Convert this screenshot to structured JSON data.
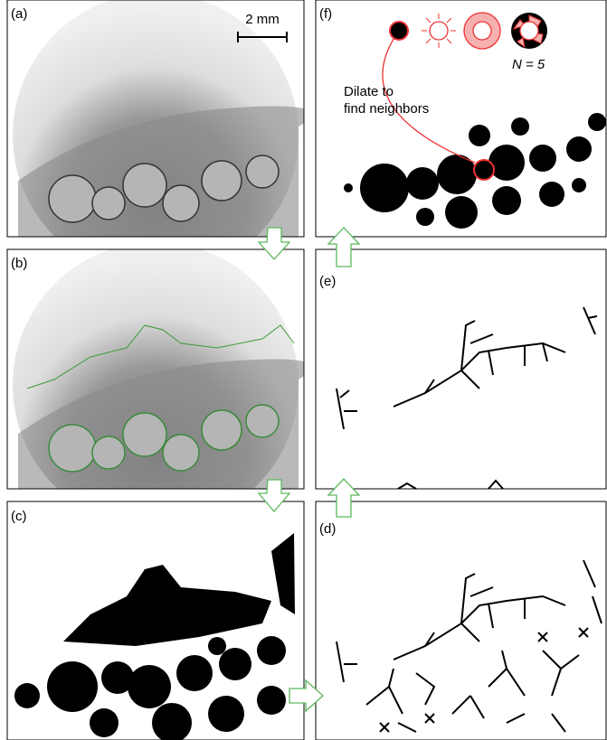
{
  "panels": [
    {
      "label": "(a)"
    },
    {
      "label": "(b)"
    },
    {
      "label": "(c)"
    },
    {
      "label": "(d)"
    },
    {
      "label": "(e)"
    },
    {
      "label": "(f)"
    }
  ],
  "scale_bar": "2 mm",
  "annotation": {
    "lines": [
      "Dilate to",
      "find neighbors"
    ],
    "count": "N = 5"
  }
}
